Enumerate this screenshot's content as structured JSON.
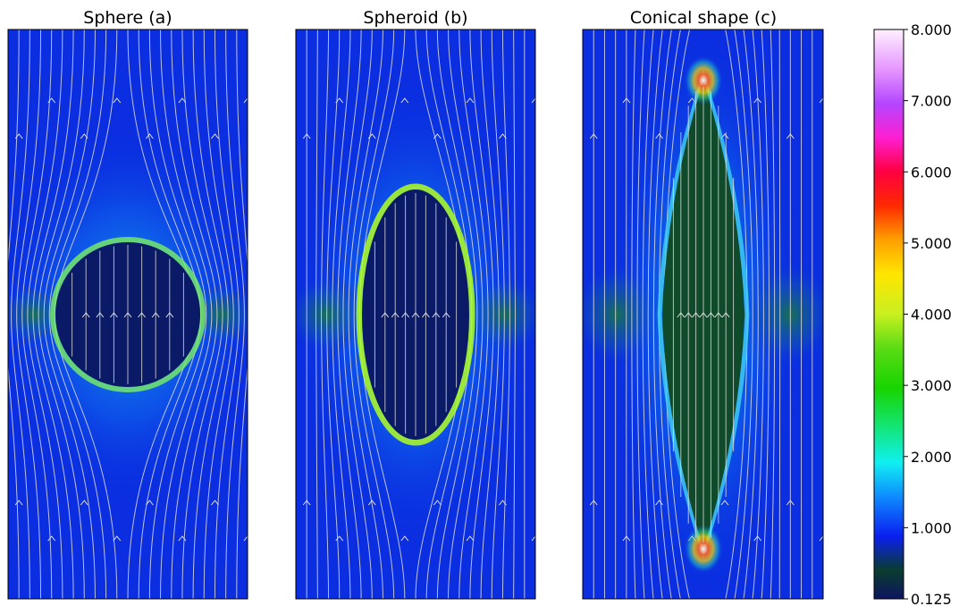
{
  "chart_data": {
    "type": "heatmap",
    "panels": [
      {
        "title": "Sphere (a)",
        "shape": "circle"
      },
      {
        "title": "Spheroid (b)",
        "shape": "ellipse"
      },
      {
        "title": "Conical shape (c)",
        "shape": "lens"
      }
    ],
    "colorbar": {
      "colormap": "gist_ncar",
      "vmin": 0.125,
      "vmax": 8.0,
      "ticks": [
        0.125,
        1.0,
        2.0,
        3.0,
        4.0,
        5.0,
        6.0,
        7.0,
        8.0
      ],
      "tick_labels": [
        "0.125",
        "1.000",
        "2.000",
        "3.000",
        "4.000",
        "5.000",
        "6.000",
        "7.000",
        "8.000"
      ]
    },
    "streamlines": {
      "color": "#e6e6e6",
      "direction": "up"
    },
    "colors": {
      "interior": "#0a1a66",
      "interior_cone": "#0f4a2a",
      "field_low": "#0a2ee0",
      "field_mid": "#12b8e8",
      "rim": "#9aff20"
    }
  }
}
